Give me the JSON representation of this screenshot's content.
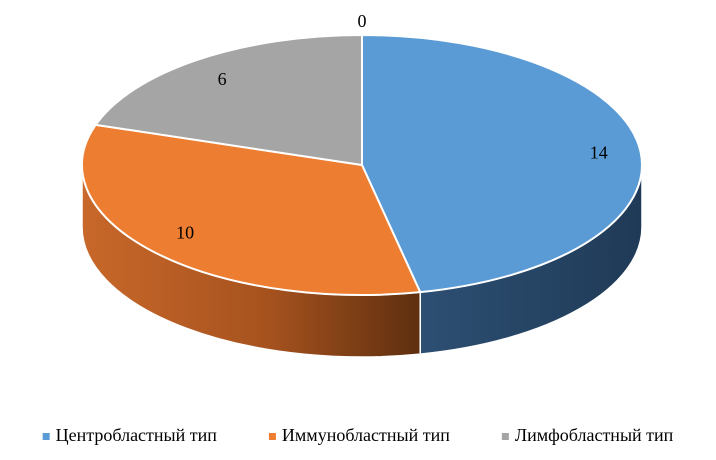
{
  "chart_data": {
    "type": "pie",
    "style": "3d",
    "legend_position": "bottom",
    "categories": [
      "Центробластный тип",
      "Иммунобластный тип",
      "Лимфобластный тип",
      ""
    ],
    "values": [
      14,
      10,
      6,
      0
    ],
    "data_labels": [
      "14",
      "10",
      "6",
      "0"
    ],
    "colors": [
      "#5b9bd5",
      "#ed7d31",
      "#a5a5a5",
      "#ffc000"
    ]
  }
}
